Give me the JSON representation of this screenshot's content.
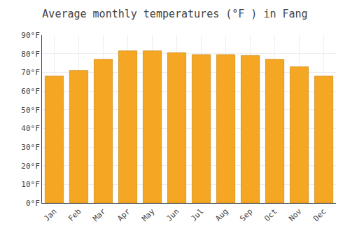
{
  "chart_data": {
    "type": "bar",
    "title": "Average monthly temperatures (°F ) in Fang",
    "categories": [
      "Jan",
      "Feb",
      "Mar",
      "Apr",
      "May",
      "Jun",
      "Jul",
      "Aug",
      "Sep",
      "Oct",
      "Nov",
      "Dec"
    ],
    "values": [
      68,
      71,
      77,
      81.5,
      81.5,
      80.5,
      79.5,
      79.5,
      79,
      77,
      73,
      68
    ],
    "color": "#F5A623",
    "ylim": [
      0,
      90
    ],
    "yticks": [
      {
        "value": 0,
        "label": "0°F"
      },
      {
        "value": 10,
        "label": "10°F"
      },
      {
        "value": 20,
        "label": "20°F"
      },
      {
        "value": 30,
        "label": "30°F"
      },
      {
        "value": 40,
        "label": "40°F"
      },
      {
        "value": 50,
        "label": "50°F"
      },
      {
        "value": 60,
        "label": "60°F"
      },
      {
        "value": 70,
        "label": "70°F"
      },
      {
        "value": 80,
        "label": "80°F"
      },
      {
        "value": 90,
        "label": "90°F"
      }
    ],
    "grid": true
  }
}
